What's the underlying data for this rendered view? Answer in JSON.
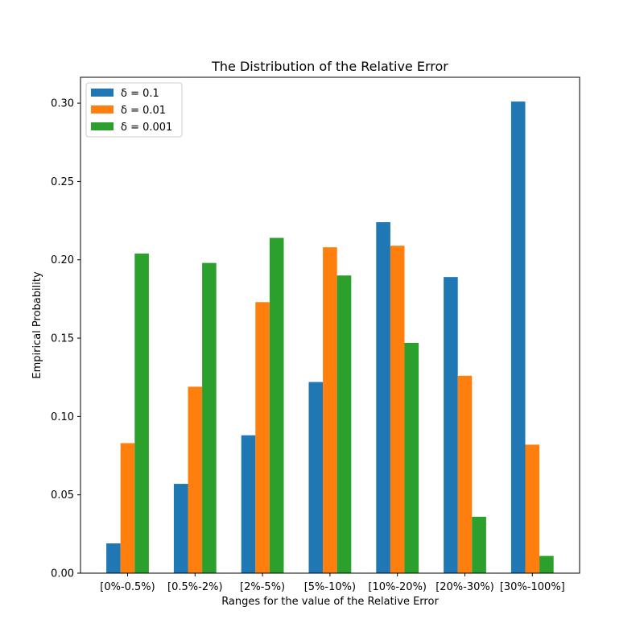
{
  "chart_data": {
    "type": "bar",
    "title": "The Distribution of the Relative Error",
    "xlabel": "Ranges for the value of the Relative Error",
    "ylabel": "Empirical Probability",
    "categories": [
      "[0%-0.5%)",
      "[0.5%-2%)",
      "[2%-5%)",
      "[5%-10%)",
      "[10%-20%)",
      "[20%-30%)",
      "[30%-100%]"
    ],
    "series": [
      {
        "name": "δ = 0.1",
        "color": "#1f77b4",
        "values": [
          0.019,
          0.057,
          0.088,
          0.122,
          0.224,
          0.189,
          0.301
        ]
      },
      {
        "name": "δ = 0.01",
        "color": "#ff7f0e",
        "values": [
          0.083,
          0.119,
          0.173,
          0.208,
          0.209,
          0.126,
          0.082
        ]
      },
      {
        "name": "δ = 0.001",
        "color": "#2ca02c",
        "values": [
          0.204,
          0.198,
          0.214,
          0.19,
          0.147,
          0.036,
          0.011
        ]
      }
    ],
    "yticks": [
      "0.00",
      "0.05",
      "0.10",
      "0.15",
      "0.20",
      "0.25",
      "0.30"
    ],
    "ylim": [
      0,
      0.3165
    ],
    "grid": false,
    "legend_position": "top-left"
  }
}
